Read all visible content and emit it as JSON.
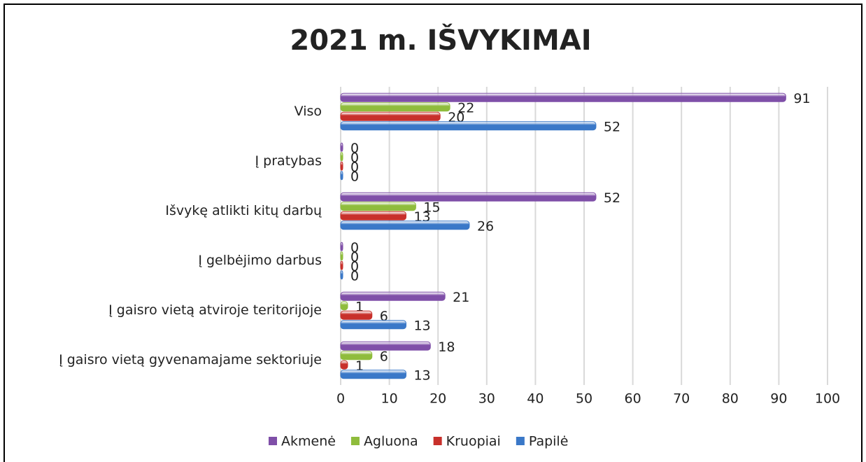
{
  "chart_data": {
    "type": "hbar",
    "title": "2021 m. IŠVYKIMAI",
    "categories": [
      "Viso",
      "Į pratybas",
      "Išvykę atlikti kitų darbų",
      "Į gelbėjimo darbus",
      "Į gaisro vietą atviroje teritorijoje",
      "Į gaisro vietą gyvenamajame sektoriuje"
    ],
    "series": [
      {
        "name": "Akmenė",
        "color": "#7f4fa8",
        "values": [
          91,
          0,
          52,
          0,
          21,
          18
        ]
      },
      {
        "name": "Agluona",
        "color": "#8fbc3c",
        "values": [
          22,
          0,
          15,
          0,
          1,
          6
        ]
      },
      {
        "name": "Kruopiai",
        "color": "#c8302b",
        "values": [
          20,
          0,
          13,
          0,
          6,
          1
        ]
      },
      {
        "name": "Papilė",
        "color": "#3a78c8",
        "values": [
          52,
          0,
          26,
          0,
          13,
          13
        ]
      }
    ],
    "xlim": [
      0,
      100
    ],
    "xticks": [
      0,
      10,
      20,
      30,
      40,
      50,
      60,
      70,
      80,
      90,
      100
    ],
    "grid": true,
    "legend": "bottom"
  }
}
